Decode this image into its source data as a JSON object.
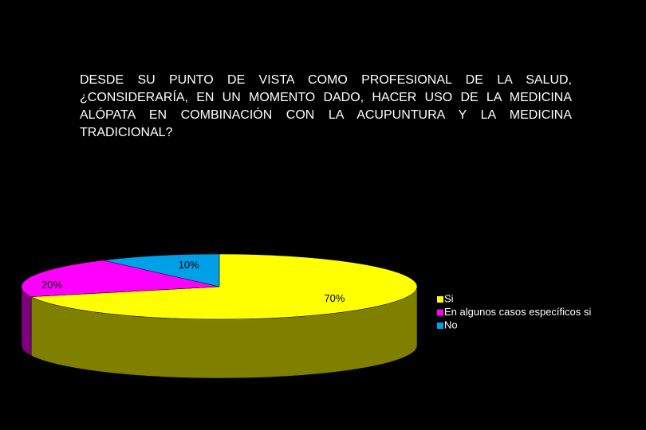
{
  "chart_data": {
    "type": "pie",
    "title": "DESDE SU PUNTO DE VISTA COMO PROFESIONAL DE LA SALUD, ¿CONSIDERARÍA, EN UN MOMENTO DADO, HACER USO DE LA MEDICINA ALÓPATA EN COMBINACIÓN CON LA ACUPUNTURA Y LA MEDICINA TRADICIONAL?",
    "categories": [
      "Si",
      "En algunos casos específicos si",
      "No"
    ],
    "values": [
      70,
      20,
      10
    ],
    "value_labels": [
      "70%",
      "20%",
      "10%"
    ],
    "colors": [
      "#ffff00",
      "#ff00ff",
      "#00a0e8"
    ]
  }
}
